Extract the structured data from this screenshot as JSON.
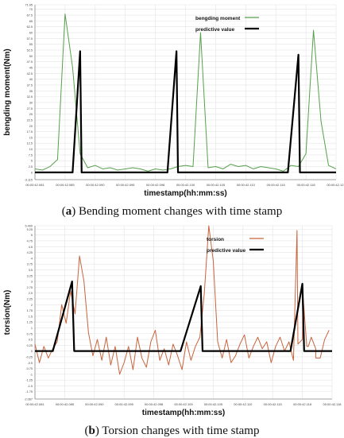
{
  "chart_data": [
    {
      "type": "line",
      "caption_letter": "a",
      "caption_text": "Bending moment changes with time stamp",
      "xlabel": "timestamp(hh:mm:ss)",
      "ylabel": "bengding moment(Nm)",
      "ylim": [
        -3.115,
        71.95
      ],
      "yticks": [
        -3.115,
        0,
        2.5,
        5,
        7.5,
        10,
        12.5,
        15,
        17.5,
        20,
        22.5,
        25,
        27.5,
        30,
        32.5,
        35,
        37.5,
        40,
        42.5,
        45,
        47.5,
        50,
        52.5,
        55,
        57.5,
        60,
        62.5,
        65,
        67.5,
        70,
        71.95
      ],
      "ytick_labels": [
        "-3.115",
        "0",
        "2.5",
        "5",
        "7.5",
        "10",
        "12.5",
        "15",
        "17.5",
        "20",
        "22.5",
        "25",
        "27.5",
        "30",
        "32.5",
        "35",
        "37.5",
        "40",
        "42.5",
        "45",
        "47.5",
        "50",
        "52.5",
        "55",
        "57.5",
        "60",
        "62.5",
        "65",
        "67.5",
        "70",
        "71.95"
      ],
      "xlim": [
        0,
        100
      ],
      "xticks": [
        0,
        10,
        20,
        30,
        40,
        50,
        60,
        70,
        80,
        90,
        100
      ],
      "xtick_labels": [
        "00:00:42.081",
        "00:00:42.085",
        "00:00:42.090",
        "00:00:42.095",
        "00:00:42.098",
        "00:00:42.100",
        "00:00:42.105",
        "00:00:42.110",
        "00:00:42.115",
        "00:00:42.118",
        "00:00:42.121"
      ],
      "legend": "top-right",
      "grid": true,
      "series": [
        {
          "name": "bengding moment",
          "color": "#55a04a",
          "x": [
            0,
            2.5,
            5,
            7.5,
            10,
            12.5,
            15,
            17.5,
            20,
            22.5,
            25,
            27.5,
            30,
            32.5,
            35,
            37.5,
            40,
            42.5,
            45,
            47.5,
            50,
            52.5,
            55,
            57.5,
            60,
            62.5,
            65,
            67.5,
            70,
            72.5,
            75,
            77.5,
            80,
            82.5,
            85,
            87.5,
            90,
            92.5,
            95,
            97.5,
            100
          ],
          "y": [
            1.5,
            1.0,
            2.5,
            5.5,
            68,
            45,
            8,
            2,
            3,
            1.5,
            2,
            1,
            1.5,
            2,
            1.5,
            0.5,
            1.5,
            1,
            1.5,
            2.5,
            3,
            2.5,
            60,
            2,
            2.5,
            1.5,
            3.5,
            2.5,
            3,
            1.5,
            2.5,
            2,
            1.5,
            0.5,
            3,
            2.5,
            8,
            61,
            22,
            3,
            1.5
          ]
        },
        {
          "name": "predictive value",
          "color": "#000000",
          "x": [
            0,
            12.5,
            15,
            15.5,
            44,
            47,
            47.5,
            84,
            87.5,
            88,
            100
          ],
          "y": [
            0,
            0,
            52,
            0,
            0,
            52,
            0,
            0,
            50.5,
            0,
            0
          ]
        }
      ]
    },
    {
      "type": "line",
      "caption_letter": "b",
      "caption_text": "Torsion changes with time stamp",
      "xlabel": "timestamp(hh:mm:ss)",
      "ylabel": "torsion(Nm)",
      "ylim": [
        -2.067,
        5.4
      ],
      "yticks": [
        -2.067,
        -1.75,
        -1.5,
        -1.25,
        -1,
        -0.75,
        -0.5,
        -0.25,
        0,
        0.25,
        0.5,
        0.75,
        1,
        1.25,
        1.5,
        1.75,
        2,
        2.25,
        2.5,
        2.75,
        3,
        3.25,
        3.5,
        3.75,
        4,
        4.25,
        4.5,
        4.75,
        5,
        5.25,
        5.4
      ],
      "ytick_labels": [
        "-2.067",
        "-1.75",
        "-1.5",
        "-1.25",
        "-1",
        "-0.75",
        "-0.5",
        "-0.25",
        "0",
        "0.25",
        "0.5",
        "0.75",
        "1",
        "1.25",
        "1.5",
        "1.75",
        "2",
        "2.25",
        "2.5",
        "2.75",
        "3",
        "3.25",
        "3.5",
        "3.75",
        "4",
        "4.25",
        "4.5",
        "4.75",
        "5",
        "5.25",
        "5.400"
      ],
      "xlim": [
        0,
        100
      ],
      "xticks": [
        0,
        10,
        20,
        30,
        40,
        50,
        60,
        70,
        80,
        90,
        100
      ],
      "xtick_labels": [
        "00:00:42.081",
        "00:00:42.085",
        "00:00:42.090",
        "00:00:42.095",
        "00:00:42.098",
        "00:00:42.100",
        "00:00:42.105",
        "00:00:42.110",
        "00:00:42.115",
        "00:00:42.118",
        "00:00:42.118"
      ],
      "legend": "top-right",
      "grid": true,
      "series": [
        {
          "name": "torsion",
          "color": "#c8643c",
          "x": [
            0,
            1.5,
            3,
            4.5,
            6,
            7.5,
            9,
            10.5,
            12,
            13.5,
            15,
            16.5,
            18,
            19.5,
            21,
            22.5,
            24,
            25.5,
            27,
            28.5,
            30,
            31.5,
            33,
            34.5,
            36,
            37.5,
            39,
            40.5,
            42,
            43.5,
            45,
            46.5,
            48,
            49.5,
            51,
            52.5,
            54,
            55.5,
            57,
            58.5,
            60,
            61.5,
            63,
            64.5,
            66,
            67.5,
            69,
            70.5,
            72,
            73.5,
            75,
            76.5,
            78,
            79.5,
            81,
            82.5,
            84,
            85.5,
            87,
            88.5,
            90,
            91.5,
            93,
            94.5,
            96,
            97.5,
            99
          ],
          "y": [
            0.3,
            -0.5,
            0.2,
            -0.3,
            0.1,
            0.4,
            2.0,
            1.2,
            2.6,
            1.6,
            4.1,
            3.0,
            0.8,
            -0.2,
            0.5,
            -0.4,
            0.6,
            -0.6,
            0.2,
            -1.0,
            -0.5,
            0.2,
            -0.8,
            0.6,
            -0.3,
            -0.7,
            0.4,
            0.9,
            -0.4,
            0.1,
            -0.6,
            0.3,
            -0.2,
            -0.8,
            0.4,
            -0.4,
            0.2,
            0.6,
            2.5,
            5.4,
            3.9,
            0.4,
            -0.3,
            0.5,
            -0.5,
            -0.2,
            0.3,
            0.7,
            -0.3,
            0.2,
            0.6,
            0.1,
            0.4,
            -0.5,
            0.2,
            0.6,
            0.0,
            0.4,
            -0.4,
            0.3,
            0.5,
            0.2,
            0.6,
            0.1,
            -0.3,
            0.5,
            0.9
          ],
          "extra": [
            {
              "x": 88.2,
              "y": 5.2
            },
            {
              "x": 90.2,
              "y": 2.4
            },
            {
              "x": 92.0,
              "y": 0.2
            },
            {
              "x": 94.5,
              "y": -0.3
            }
          ]
        },
        {
          "name": "predictive value",
          "color": "#000000",
          "x": [
            0,
            6,
            12.5,
            13.2,
            49,
            55.8,
            56.4,
            86,
            90,
            90.6,
            100
          ],
          "y": [
            0,
            0,
            3.0,
            0,
            0,
            2.8,
            0,
            0,
            2.9,
            0,
            0
          ]
        }
      ]
    }
  ]
}
